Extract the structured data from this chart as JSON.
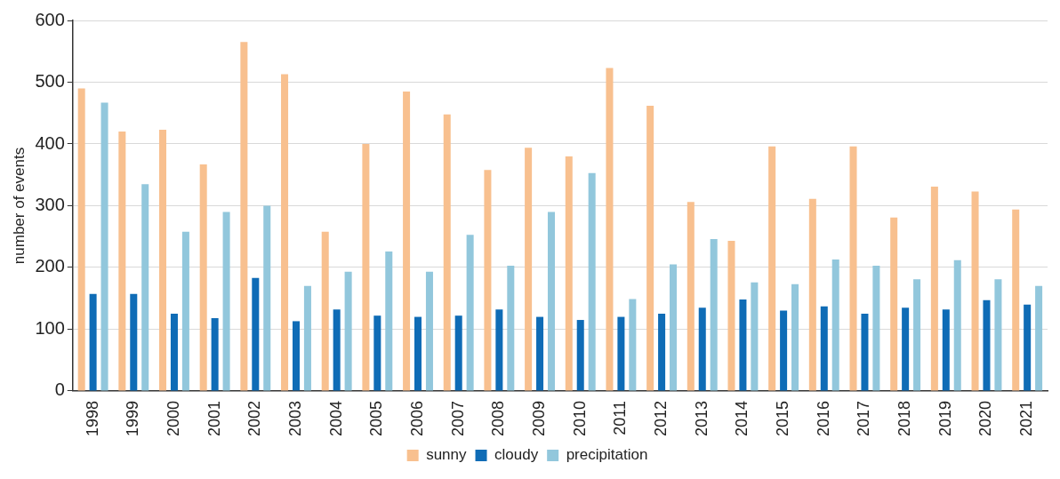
{
  "chart_data": {
    "type": "bar",
    "ylabel": "number of events",
    "categories": [
      "1998",
      "1999",
      "2000",
      "2001",
      "2002",
      "2003",
      "2004",
      "2005",
      "2006",
      "2007",
      "2008",
      "2009",
      "2010",
      "2011",
      "2012",
      "2013",
      "2014",
      "2015",
      "2016",
      "2017",
      "2018",
      "2019",
      "2020",
      "2021"
    ],
    "series": [
      {
        "name": "sunny",
        "color": "#f8c08f",
        "values": [
          490,
          420,
          423,
          367,
          565,
          513,
          258,
          400,
          485,
          448,
          358,
          394,
          380,
          523,
          462,
          306,
          243,
          396,
          311,
          396,
          281,
          331,
          323,
          294
        ]
      },
      {
        "name": "cloudy",
        "color": "#0f6cb6",
        "values": [
          157,
          157,
          125,
          118,
          183,
          113,
          132,
          122,
          120,
          122,
          132,
          120,
          115,
          120,
          125,
          135,
          148,
          130,
          137,
          125,
          135,
          132,
          147,
          140
        ]
      },
      {
        "name": "precipitation",
        "color": "#92c7dc",
        "values": [
          467,
          335,
          258,
          290,
          300,
          170,
          193,
          226,
          193,
          253,
          203,
          290,
          353,
          149,
          205,
          246,
          176,
          173,
          213,
          203,
          181,
          212,
          181,
          170
        ]
      }
    ],
    "ylim": [
      0,
      600
    ],
    "yticks": [
      0,
      100,
      200,
      300,
      400,
      500,
      600
    ],
    "grid": "y",
    "legend": "bottom"
  }
}
